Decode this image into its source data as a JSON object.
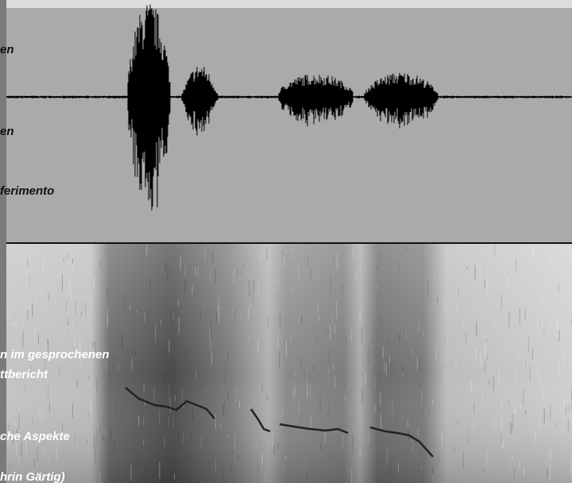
{
  "overlay_texts": [
    {
      "text": "en"
    },
    {
      "text": "en"
    },
    {
      "text": "ferimento"
    },
    {
      "text": "n im gesprochenen"
    },
    {
      "text": "ttbericht"
    },
    {
      "text": "che Aspekte"
    },
    {
      "text": "hrin Gärtig)"
    }
  ]
}
